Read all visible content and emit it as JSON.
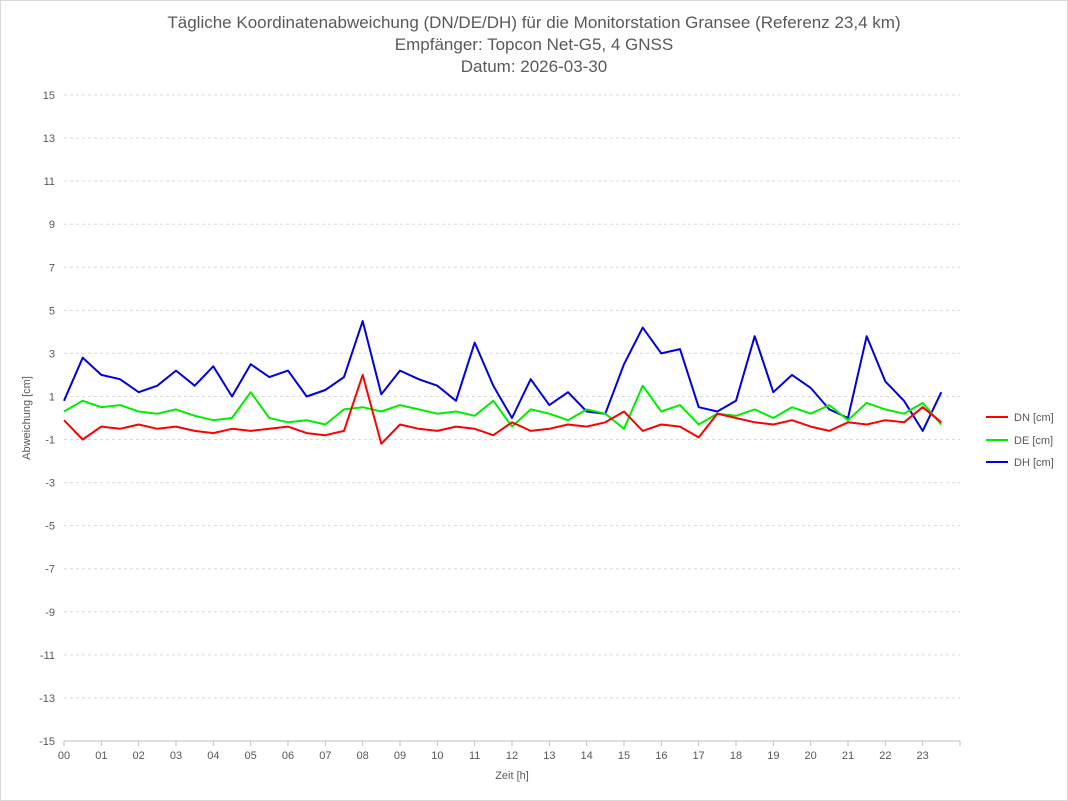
{
  "chart_data": {
    "type": "line",
    "title": "Tägliche Koordinatenabweichung (DN/DE/DH) für die Monitorstation Gransee (Referenz 23,4 km)",
    "subtitle": "Empfänger: Topcon Net-G5, 4 GNSS",
    "subtitle2": "Datum: 2026-03-30",
    "xlabel": "Zeit [h]",
    "ylabel": "Abweichung [cm]",
    "xlim": [
      0,
      24
    ],
    "ylim": [
      -15,
      15
    ],
    "x_ticks": [
      "00",
      "01",
      "02",
      "03",
      "04",
      "05",
      "06",
      "07",
      "08",
      "09",
      "10",
      "11",
      "12",
      "13",
      "14",
      "15",
      "16",
      "17",
      "18",
      "19",
      "20",
      "21",
      "22",
      "23"
    ],
    "y_ticks": [
      15,
      13,
      11,
      9,
      7,
      5,
      3,
      1,
      -1,
      -3,
      -5,
      -7,
      -9,
      -11,
      -13,
      -15
    ],
    "grid": true,
    "legend_position": "right",
    "series": [
      {
        "name": "DN [cm]",
        "color": "#ff0000",
        "x": [
          0,
          0.5,
          1,
          1.5,
          2,
          2.5,
          3,
          3.5,
          4,
          4.5,
          5,
          5.5,
          6,
          6.5,
          7,
          7.5,
          8,
          8.5,
          9,
          9.5,
          10,
          10.5,
          11,
          11.5,
          12,
          12.5,
          13,
          13.5,
          14,
          14.5,
          15,
          15.5,
          16,
          16.5,
          17,
          17.5,
          18,
          18.5,
          19,
          19.5,
          20,
          20.5,
          21,
          21.5,
          22,
          22.5,
          23,
          23.5
        ],
        "values": [
          -0.1,
          -1.0,
          -0.4,
          -0.5,
          -0.3,
          -0.5,
          -0.4,
          -0.6,
          -0.7,
          -0.5,
          -0.6,
          -0.5,
          -0.4,
          -0.7,
          -0.8,
          -0.6,
          2.0,
          -1.2,
          -0.3,
          -0.5,
          -0.6,
          -0.4,
          -0.5,
          -0.8,
          -0.2,
          -0.6,
          -0.5,
          -0.3,
          -0.4,
          -0.2,
          0.3,
          -0.6,
          -0.3,
          -0.4,
          -0.9,
          0.2,
          0.0,
          -0.2,
          -0.3,
          -0.1,
          -0.4,
          -0.6,
          -0.2,
          -0.3,
          -0.1,
          -0.2,
          0.5,
          -0.2
        ]
      },
      {
        "name": "DE [cm]",
        "color": "#00ee00",
        "x": [
          0,
          0.5,
          1,
          1.5,
          2,
          2.5,
          3,
          3.5,
          4,
          4.5,
          5,
          5.5,
          6,
          6.5,
          7,
          7.5,
          8,
          8.5,
          9,
          9.5,
          10,
          10.5,
          11,
          11.5,
          12,
          12.5,
          13,
          13.5,
          14,
          14.5,
          15,
          15.5,
          16,
          16.5,
          17,
          17.5,
          18,
          18.5,
          19,
          19.5,
          20,
          20.5,
          21,
          21.5,
          22,
          22.5,
          23,
          23.5
        ],
        "values": [
          0.3,
          0.8,
          0.5,
          0.6,
          0.3,
          0.2,
          0.4,
          0.1,
          -0.1,
          0.0,
          1.2,
          0.0,
          -0.2,
          -0.1,
          -0.3,
          0.4,
          0.5,
          0.3,
          0.6,
          0.4,
          0.2,
          0.3,
          0.1,
          0.8,
          -0.4,
          0.4,
          0.2,
          -0.1,
          0.4,
          0.2,
          -0.5,
          1.5,
          0.3,
          0.6,
          -0.3,
          0.2,
          0.1,
          0.4,
          0.0,
          0.5,
          0.2,
          0.6,
          -0.1,
          0.7,
          0.4,
          0.2,
          0.7,
          -0.3
        ]
      },
      {
        "name": "DH [cm]",
        "color": "#0000dd",
        "x": [
          0,
          0.5,
          1,
          1.5,
          2,
          2.5,
          3,
          3.5,
          4,
          4.5,
          5,
          5.5,
          6,
          6.5,
          7,
          7.5,
          8,
          8.5,
          9,
          9.5,
          10,
          10.5,
          11,
          11.5,
          12,
          12.5,
          13,
          13.5,
          14,
          14.5,
          15,
          15.5,
          16,
          16.5,
          17,
          17.5,
          18,
          18.5,
          19,
          19.5,
          20,
          20.5,
          21,
          21.5,
          22,
          22.5,
          23,
          23.5
        ],
        "values": [
          0.8,
          2.8,
          2.0,
          1.8,
          1.2,
          1.5,
          2.2,
          1.5,
          2.4,
          1.0,
          2.5,
          1.9,
          2.2,
          1.0,
          1.3,
          1.9,
          4.5,
          1.1,
          2.2,
          1.8,
          1.5,
          0.8,
          3.5,
          1.5,
          0.0,
          1.8,
          0.6,
          1.2,
          0.3,
          0.2,
          2.5,
          4.2,
          3.0,
          3.2,
          0.5,
          0.3,
          0.8,
          3.8,
          1.2,
          2.0,
          1.4,
          0.4,
          0.0,
          3.8,
          1.7,
          0.8,
          -0.6,
          1.2
        ]
      }
    ]
  }
}
